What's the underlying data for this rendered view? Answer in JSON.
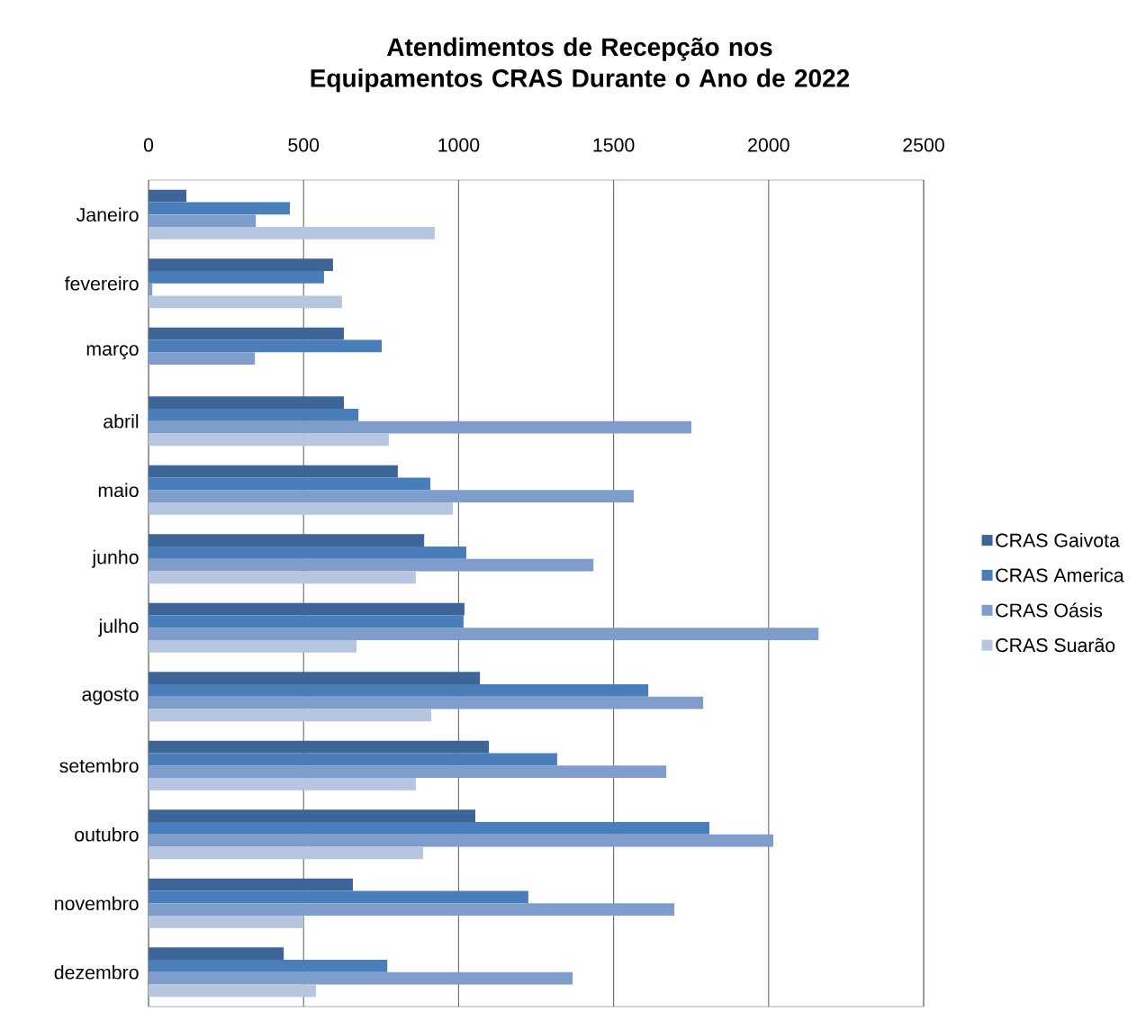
{
  "chart_data": {
    "type": "bar",
    "orientation": "horizontal",
    "title": "**Atendimentos de Recepção nos Equipamentos CRAS Durante o Ano de 2022**",
    "categories": [
      "Janeiro",
      "fevereiro",
      "março",
      "abril",
      "maio",
      "junho",
      "julho",
      "agosto",
      "setembro",
      "outubro",
      "novembro",
      "dezembro"
    ],
    "series": [
      {
        "name": "CRAS Gaivota",
        "color": "#3d6597",
        "values": [
          122,
          595,
          630,
          630,
          804,
          889,
          1019,
          1069,
          1098,
          1054,
          659,
          436
        ]
      },
      {
        "name": "CRAS America",
        "color": "#4a7ebb",
        "values": [
          456,
          566,
          752,
          677,
          909,
          1025,
          1016,
          1612,
          1318,
          1809,
          1225,
          770
        ]
      },
      {
        "name": "CRAS Oásis",
        "color": "#7f9dca",
        "values": [
          346,
          12,
          343,
          1751,
          1565,
          1435,
          2161,
          1789,
          1670,
          2015,
          1696,
          1368
        ]
      },
      {
        "name": "CRAS Suarão",
        "color": "#b6c5e0",
        "values": [
          923,
          624,
          null,
          775,
          982,
          862,
          671,
          912,
          862,
          886,
          500,
          540
        ]
      }
    ],
    "xlim": [
      0,
      2500
    ],
    "xticks": [
      0,
      500,
      1000,
      1500,
      2000,
      2500
    ],
    "grid": "x",
    "legend": "right"
  }
}
